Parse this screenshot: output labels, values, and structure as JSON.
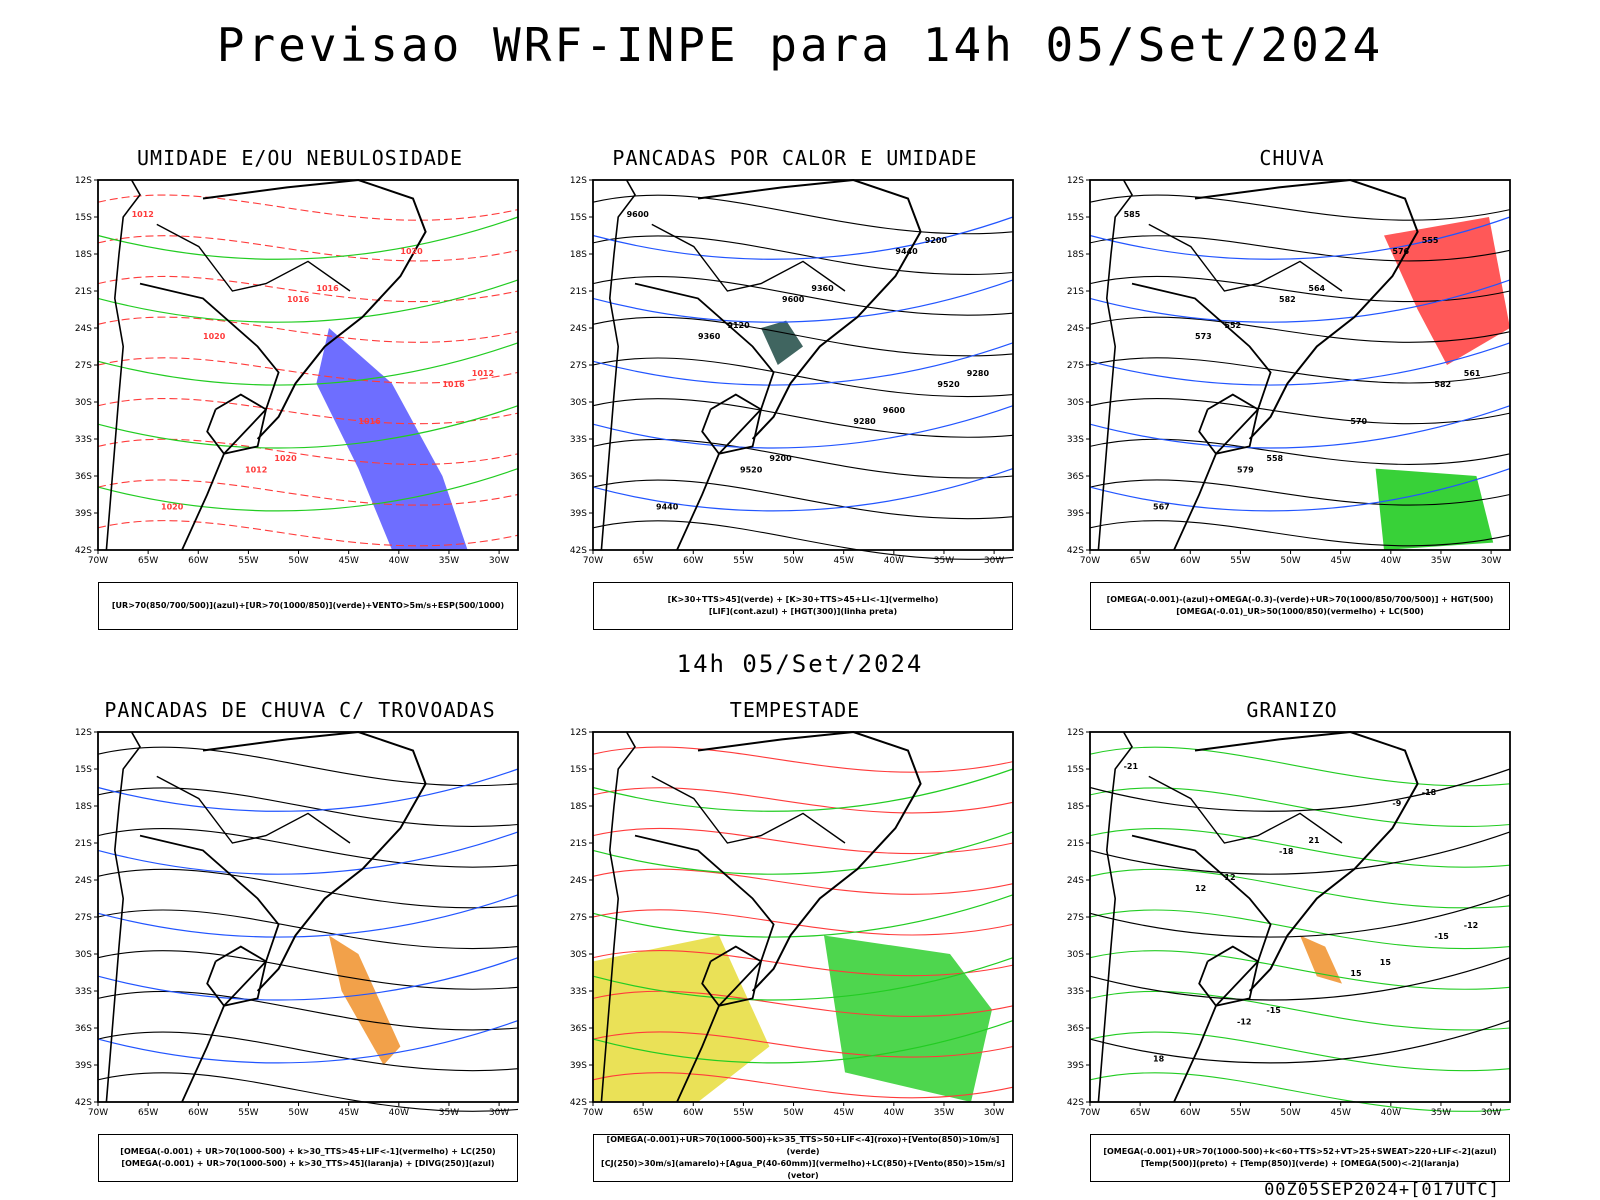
{
  "header": {
    "title": "Previsao WRF-INPE  para 14h 05/Set/2024"
  },
  "middle_label": "14h 05/Set/2024",
  "footer": "00Z05SEP2024+[017UTC]",
  "axes": {
    "lat_ticks": [
      "12S",
      "15S",
      "18S",
      "21S",
      "24S",
      "27S",
      "30S",
      "33S",
      "36S",
      "39S",
      "42S"
    ],
    "lon_ticks": [
      "70W",
      "65W",
      "60W",
      "55W",
      "50W",
      "45W",
      "40W",
      "35W",
      "30W"
    ]
  },
  "panels": [
    {
      "id": "umidade",
      "title": "UMIDADE E/OU NEBULOSIDADE",
      "legend": [
        "[UR>70(850/700/500)](azul)+[UR>70(1000/850)](verde)+VENTO>5m/s+ESP(500/1000)"
      ],
      "contour_labels": [
        "1012",
        "1016",
        "1016",
        "1012",
        "1020",
        "1020",
        "1016",
        "1020",
        "1016",
        "1012",
        "1020"
      ],
      "colors": {
        "primary": "#ff3b3b",
        "secondary": "#22cc22",
        "fill": "#5555ff"
      }
    },
    {
      "id": "pancadas_calor",
      "title": "PANCADAS POR CALOR E UMIDADE",
      "legend": [
        "[K>30+TTS>45](verde) + [K>30+TTS>45+LI<-1](vermelho)",
        "[LIF](cont.azul) + [HGT(300)](linha preta)"
      ],
      "contour_labels": [
        "9600",
        "9600",
        "9520",
        "9520",
        "9440",
        "9360",
        "9280",
        "9440",
        "9360",
        "9280",
        "9200",
        "9200",
        "9120",
        "9600"
      ],
      "colors": {
        "primary": "#000000",
        "secondary": "#2255ff",
        "fill": "#1f4a44"
      }
    },
    {
      "id": "chuva",
      "title": "CHUVA",
      "legend": [
        "[OMEGA(-0.001)-(azul)+OMEGA(-0.3)-(verde)+UR>70(1000/850/700/500)] + HGT(500)",
        "[OMEGA(-0.01)_UR>50(1000/850)(vermelho) + LC(500)"
      ],
      "contour_labels": [
        "585",
        "582",
        "582",
        "579",
        "576",
        "573",
        "570",
        "567",
        "564",
        "561",
        "558",
        "555",
        "552"
      ],
      "colors": {
        "primary": "#000000",
        "secondary": "#2255ff",
        "fill": "#ff3b3b"
      }
    },
    {
      "id": "pancadas_trovoadas",
      "title": "PANCADAS DE CHUVA C/ TROVOADAS",
      "legend": [
        "[OMEGA(-0.001) + UR>70(1000-500) + k>30_TTS>45+LIF<-1](vermelho) + LC(250)",
        "[OMEGA(-0.001) + UR>70(1000-500) + k>30_TTS>45](laranja) + [DIVG(250)](azul)"
      ],
      "contour_labels": [],
      "colors": {
        "primary": "#000000",
        "secondary": "#2255ff",
        "fill": "#f0902a"
      }
    },
    {
      "id": "tempestade",
      "title": "TEMPESTADE",
      "legend": [
        "[OMEGA(-0.001)+UR>70(1000-500)+k>35_TTS>50+LIF<-4](roxo)+[Vento(850)>10m/s](verde)",
        "[CJ(250)>30m/s](amarelo)+[Agua_P(40-60mm)](vermelho)+LC(850)+[Vento(850)>15m/s](vetor)"
      ],
      "contour_labels": [],
      "colors": {
        "primary": "#ff3b3b",
        "secondary": "#22cc22",
        "fill": "#e6dc3a"
      }
    },
    {
      "id": "granizo",
      "title": "GRANIZO",
      "legend": [
        "[OMEGA(-0.001)+UR>70(1000-500)+k<60+TTS>52+VT>25+SWEAT>220+LIF<-2](azul)",
        "[Temp(500)](preto) + [Temp(850)](verde) + [OMEGA(500)<-2](laranja)"
      ],
      "contour_labels": [
        "-21",
        "-18",
        "-15",
        "-12",
        "-9",
        "12",
        "15",
        "18",
        "21",
        "-12",
        "-15",
        "-18",
        "12",
        "15"
      ],
      "colors": {
        "primary": "#22cc22",
        "secondary": "#000000",
        "fill": "#f0902a"
      }
    }
  ]
}
